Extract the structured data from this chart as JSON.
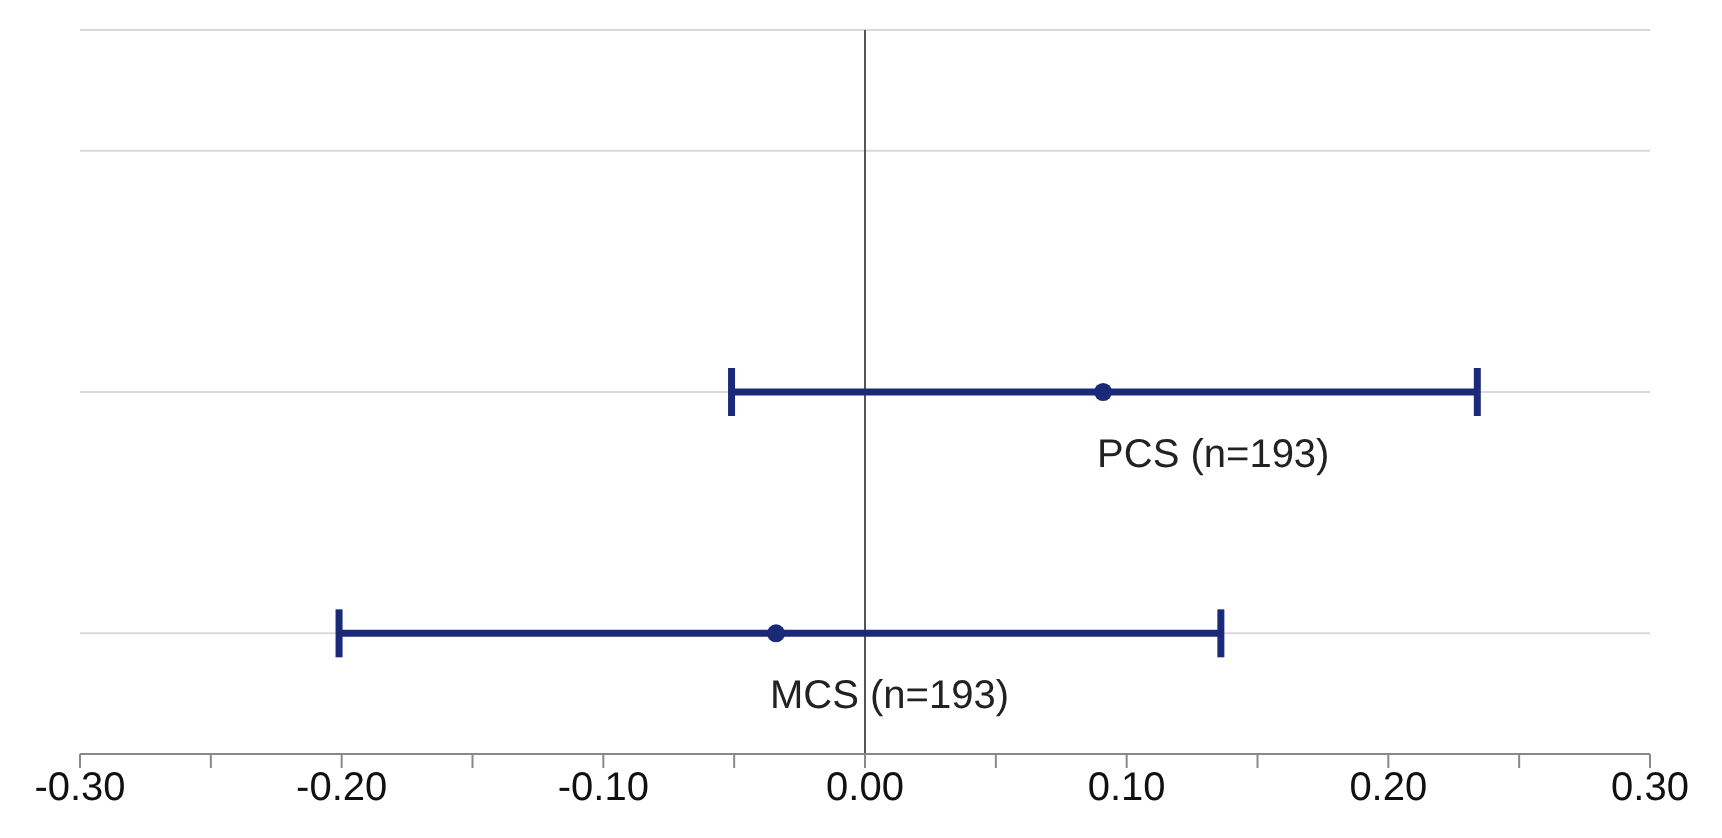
{
  "chart_data": {
    "type": "scatter",
    "orientation": "horizontal",
    "categories": [
      null,
      null,
      null
    ],
    "series": [
      {
        "name": "PCS (n=193)",
        "color": "#1b2a78",
        "values": [
          null,
          0.091,
          null
        ],
        "errors": [
          null,
          [
            -0.051,
            0.234
          ],
          null
        ]
      },
      {
        "name": "MCS (n=193)",
        "color": "#1b2a78",
        "values": [
          null,
          null,
          -0.034
        ],
        "errors": [
          null,
          null,
          [
            -0.201,
            0.136
          ]
        ]
      }
    ],
    "xlim": [
      -0.3,
      0.3
    ],
    "xticks": [
      {
        "value": -0.3,
        "label": "-0.30"
      },
      {
        "value": -0.25,
        "label": null
      },
      {
        "value": -0.2,
        "label": "-0.20"
      },
      {
        "value": -0.15,
        "label": null
      },
      {
        "value": -0.1,
        "label": "-0.10"
      },
      {
        "value": -0.05,
        "label": null
      },
      {
        "value": 0,
        "label": "0.00"
      },
      {
        "value": 0.05,
        "label": null
      },
      {
        "value": 0.1,
        "label": "0.10"
      },
      {
        "value": 0.15,
        "label": null
      },
      {
        "value": 0.2,
        "label": "0.20"
      },
      {
        "value": 0.25,
        "label": null
      },
      {
        "value": 0.3,
        "label": "0.30"
      }
    ],
    "grid": "y",
    "marker": "circle",
    "ref_lines": [
      {
        "axis": "x",
        "value": 0,
        "color": "#555555"
      }
    ]
  }
}
